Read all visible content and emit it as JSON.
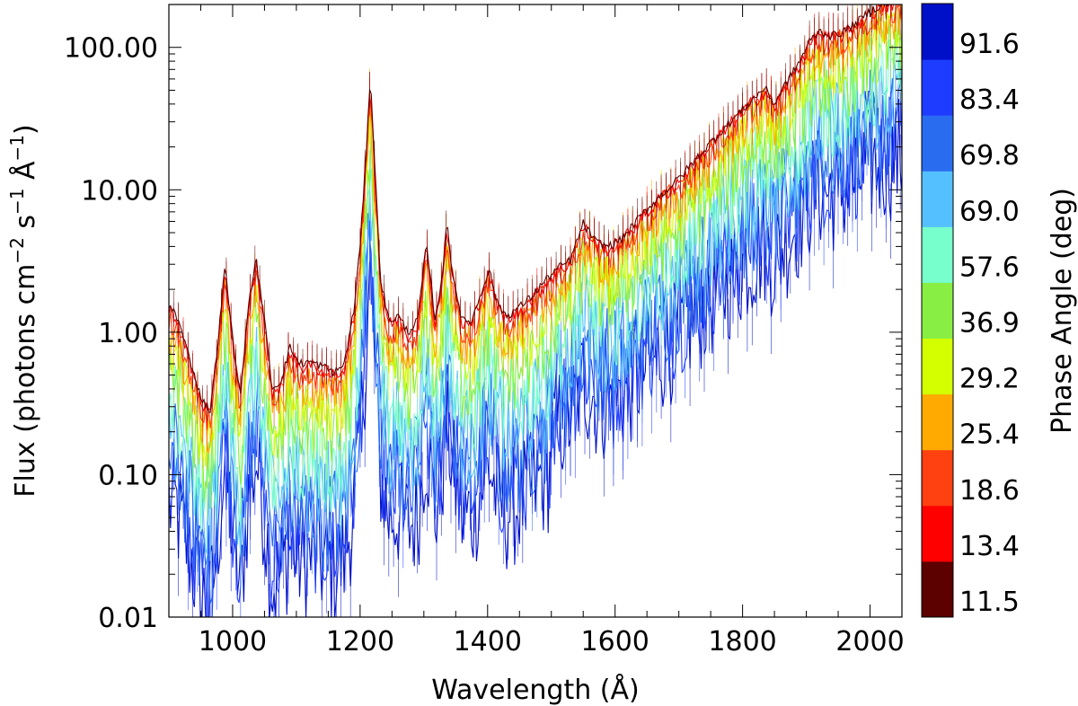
{
  "chart_data": {
    "type": "line",
    "title": "",
    "xlabel": "Wavelength (Å)",
    "ylabel_parts": [
      "Flux (photons cm",
      "−2",
      " s",
      "−1",
      " Å",
      "−1",
      ")"
    ],
    "xlim": [
      900,
      2050
    ],
    "ylim": [
      0.01,
      200
    ],
    "yscale": "log",
    "grid": false,
    "x_ticks": [
      {
        "value": 1000,
        "label": "1000"
      },
      {
        "value": 1200,
        "label": "1200"
      },
      {
        "value": 1400,
        "label": "1400"
      },
      {
        "value": 1600,
        "label": "1600"
      },
      {
        "value": 1800,
        "label": "1800"
      },
      {
        "value": 2000,
        "label": "2000"
      }
    ],
    "y_ticks": [
      {
        "value": 0.01,
        "label": "0.01"
      },
      {
        "value": 0.1,
        "label": "0.10"
      },
      {
        "value": 1,
        "label": "1.00"
      },
      {
        "value": 10,
        "label": "10.00"
      },
      {
        "value": 100,
        "label": "100.00"
      }
    ],
    "colorbar": {
      "title": "Phase Angle (deg)",
      "entries": [
        {
          "label": "11.5",
          "color": "#5c0000"
        },
        {
          "label": "13.4",
          "color": "#ff0000"
        },
        {
          "label": "18.6",
          "color": "#ff4010"
        },
        {
          "label": "25.4",
          "color": "#ffaa00"
        },
        {
          "label": "29.2",
          "color": "#d4ff00"
        },
        {
          "label": "36.9",
          "color": "#88ee44"
        },
        {
          "label": "57.6",
          "color": "#77ffcc"
        },
        {
          "label": "69.0",
          "color": "#55c0ff"
        },
        {
          "label": "69.8",
          "color": "#2a6cf0"
        },
        {
          "label": "83.4",
          "color": "#1e3cff"
        },
        {
          "label": "91.6",
          "color": "#0010c8"
        }
      ]
    },
    "base_spectrum": {
      "wavelength": [
        900,
        910,
        920,
        935,
        950,
        965,
        975,
        988,
        1000,
        1012,
        1025,
        1037,
        1050,
        1062,
        1075,
        1090,
        1105,
        1120,
        1140,
        1160,
        1175,
        1190,
        1200,
        1210,
        1216,
        1222,
        1232,
        1245,
        1260,
        1275,
        1290,
        1304,
        1318,
        1330,
        1336,
        1345,
        1360,
        1375,
        1390,
        1402,
        1415,
        1430,
        1450,
        1470,
        1490,
        1510,
        1530,
        1550,
        1570,
        1590,
        1610,
        1640,
        1670,
        1700,
        1730,
        1760,
        1790,
        1820,
        1835,
        1850,
        1870,
        1890,
        1905,
        1920,
        1940,
        1960,
        1980,
        2000,
        2020,
        2040,
        2050
      ],
      "flux": [
        1.5,
        1.4,
        1.0,
        0.6,
        0.35,
        0.28,
        0.7,
        2.9,
        0.9,
        0.35,
        1.6,
        3.2,
        1.2,
        0.4,
        0.45,
        0.78,
        0.6,
        0.62,
        0.58,
        0.52,
        0.6,
        1.4,
        4.0,
        20,
        65,
        18,
        2.4,
        1.2,
        1.3,
        1.0,
        1.2,
        4.1,
        1.2,
        2.8,
        6.0,
        2.6,
        1.2,
        1.2,
        1.9,
        2.8,
        1.6,
        1.3,
        1.5,
        1.8,
        2.3,
        2.8,
        3.2,
        5.8,
        4.3,
        4.0,
        4.5,
        6.5,
        9.0,
        12.0,
        17.0,
        24.0,
        33.0,
        45.0,
        52.0,
        40.0,
        58.0,
        80.0,
        110.0,
        130.0,
        120.0,
        130.0,
        150.0,
        180.0,
        200.0,
        210.0,
        215.0
      ]
    },
    "series": [
      {
        "name": "11.5",
        "scale": 1.0
      },
      {
        "name": "13.4",
        "scale": 0.95
      },
      {
        "name": "18.6",
        "scale": 0.85
      },
      {
        "name": "25.4",
        "scale": 0.72
      },
      {
        "name": "29.2",
        "scale": 0.6
      },
      {
        "name": "36.9",
        "scale": 0.45
      },
      {
        "name": "57.6",
        "scale": 0.3
      },
      {
        "name": "69.0",
        "scale": 0.22
      },
      {
        "name": "69.8",
        "scale": 0.15
      },
      {
        "name": "83.4",
        "scale": 0.11
      },
      {
        "name": "91.6",
        "scale": 0.08
      }
    ]
  }
}
